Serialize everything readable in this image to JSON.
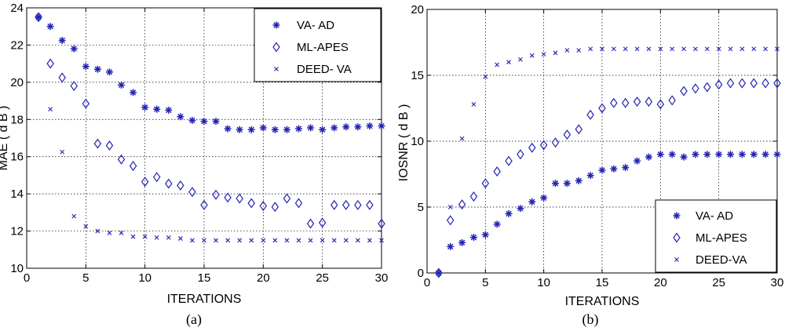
{
  "marker_color": "#2323b5",
  "chart_data": [
    {
      "type": "scatter",
      "caption": "(a)",
      "xlabel": "ITERATIONS",
      "ylabel": "MAE ( d B )",
      "xlim": [
        0,
        30
      ],
      "ylim": [
        10,
        24
      ],
      "xticks": [
        0,
        5,
        10,
        15,
        20,
        25,
        30
      ],
      "yticks": [
        10,
        12,
        14,
        16,
        18,
        20,
        22,
        24
      ],
      "grid": true,
      "legend_position": "top-right",
      "x": [
        1,
        2,
        3,
        4,
        5,
        6,
        7,
        8,
        9,
        10,
        11,
        12,
        13,
        14,
        15,
        16,
        17,
        18,
        19,
        20,
        21,
        22,
        23,
        24,
        25,
        26,
        27,
        28,
        29,
        30
      ],
      "series": [
        {
          "name": "VA- AD",
          "marker": "star",
          "values": [
            23.5,
            23.0,
            22.25,
            21.8,
            20.85,
            20.7,
            20.55,
            19.85,
            19.45,
            18.65,
            18.55,
            18.5,
            18.15,
            17.95,
            17.9,
            17.9,
            17.5,
            17.45,
            17.45,
            17.55,
            17.45,
            17.45,
            17.5,
            17.55,
            17.45,
            17.55,
            17.6,
            17.6,
            17.65,
            17.65
          ]
        },
        {
          "name": "ML-APES",
          "marker": "diamond",
          "values": [
            23.5,
            21.0,
            20.25,
            19.8,
            18.85,
            16.7,
            16.6,
            15.85,
            15.5,
            14.65,
            14.9,
            14.55,
            14.45,
            14.1,
            13.4,
            13.95,
            13.8,
            13.75,
            13.5,
            13.35,
            13.3,
            13.75,
            13.5,
            12.4,
            12.45,
            13.4,
            13.4,
            13.4,
            13.4,
            12.4
          ]
        },
        {
          "name": "DEED- VA",
          "marker": "x",
          "values": [
            23.5,
            18.55,
            16.25,
            12.8,
            12.25,
            12.0,
            11.9,
            11.9,
            11.7,
            11.7,
            11.65,
            11.65,
            11.6,
            11.5,
            11.5,
            11.5,
            11.5,
            11.5,
            11.5,
            11.5,
            11.5,
            11.5,
            11.5,
            11.5,
            11.5,
            11.5,
            11.5,
            11.5,
            11.5,
            11.5
          ]
        }
      ]
    },
    {
      "type": "scatter",
      "caption": "(b)",
      "xlabel": "ITERATIONS",
      "ylabel": "IOSNR ( d B )",
      "xlim": [
        0,
        30
      ],
      "ylim": [
        0,
        20
      ],
      "xticks": [
        0,
        5,
        10,
        15,
        20,
        25,
        30
      ],
      "yticks": [
        0,
        5,
        10,
        15,
        20
      ],
      "grid": true,
      "legend_position": "bottom-right",
      "x": [
        1,
        2,
        3,
        4,
        5,
        6,
        7,
        8,
        9,
        10,
        11,
        12,
        13,
        14,
        15,
        16,
        17,
        18,
        19,
        20,
        21,
        22,
        23,
        24,
        25,
        26,
        27,
        28,
        29,
        30
      ],
      "series": [
        {
          "name": "VA- AD",
          "marker": "star",
          "values": [
            0,
            2.0,
            2.3,
            2.7,
            2.9,
            3.7,
            4.5,
            4.9,
            5.4,
            5.7,
            6.8,
            6.8,
            7.0,
            7.4,
            7.8,
            7.9,
            8.0,
            8.5,
            8.8,
            9.0,
            9.0,
            8.8,
            9.0,
            9.0,
            9.0,
            9.0,
            9.0,
            9.0,
            9.0,
            9.0
          ]
        },
        {
          "name": "ML-APES",
          "marker": "diamond",
          "values": [
            0,
            4.0,
            5.2,
            5.8,
            6.8,
            7.7,
            8.5,
            9.0,
            9.5,
            9.7,
            9.9,
            10.5,
            10.9,
            12.0,
            12.5,
            12.9,
            12.9,
            13.0,
            13.0,
            12.8,
            13.1,
            13.8,
            14.0,
            14.1,
            14.3,
            14.4,
            14.4,
            14.4,
            14.4,
            14.4
          ]
        },
        {
          "name": "DEED-VA",
          "marker": "x",
          "values": [
            0,
            5.0,
            10.2,
            12.8,
            14.9,
            15.8,
            16.0,
            16.2,
            16.5,
            16.6,
            16.7,
            16.9,
            16.9,
            17.0,
            17.0,
            17.0,
            17.0,
            17.0,
            17.0,
            17.0,
            17.0,
            17.0,
            17.0,
            17.0,
            17.0,
            17.0,
            17.0,
            17.0,
            17.0,
            17.0
          ]
        }
      ]
    }
  ]
}
